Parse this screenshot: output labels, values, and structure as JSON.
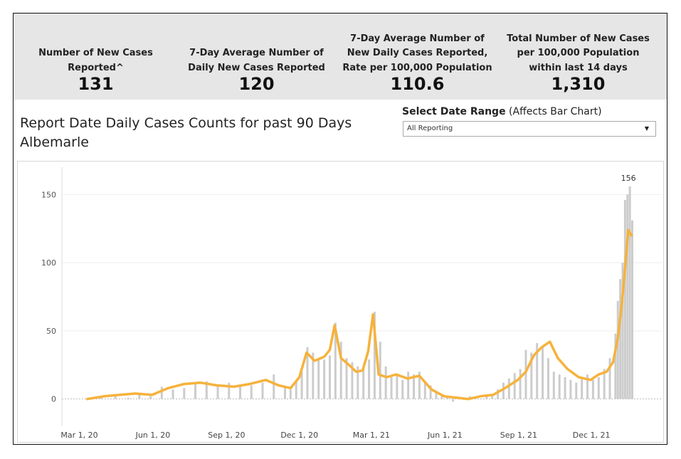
{
  "kpis": [
    {
      "label_lines": [
        "Number of New Cases",
        "Reported^"
      ],
      "value": "131"
    },
    {
      "label_lines": [
        "7-Day Average Number of",
        "Daily New Cases Reported"
      ],
      "value": "120"
    },
    {
      "label_lines": [
        "7-Day Average Number of",
        "New Daily Cases Reported,",
        "Rate per 100,000 Population"
      ],
      "value": "110.6"
    },
    {
      "label_lines": [
        "Total Number of New Cases",
        "per 100,000 Population",
        "within last 14 days"
      ],
      "value": "1,310"
    }
  ],
  "chart_title_lines": [
    "Report Date Daily Cases Counts for past 90 Days",
    "Albemarle"
  ],
  "filter": {
    "label_bold": "Select Date Range",
    "label_rest": " (Affects Bar Chart)",
    "selected": "All Reporting"
  },
  "colors": {
    "bars": "#cccccc",
    "moving_average": "#f6b23c",
    "kpi_band": "#e6e6e6"
  },
  "chart_data": {
    "type": "bar",
    "title": "Report Date Daily Cases Counts for past 90 Days",
    "subtitle": "Albemarle",
    "x_ticks": [
      "Mar 1, 20",
      "Jun 1, 20",
      "Sep 1, 20",
      "Dec 1, 20",
      "Mar 1, 21",
      "Jun 1, 21",
      "Sep 1, 21",
      "Dec 1, 21"
    ],
    "y_ticks": [
      0,
      50,
      100,
      150
    ],
    "ylim": [
      -20,
      170
    ],
    "max_label": "156",
    "series": [
      {
        "type": "bar",
        "x": [
          "2020-03-11",
          "2020-03-28",
          "2020-04-15",
          "2020-05-01",
          "2020-05-15",
          "2020-05-29",
          "2020-06-12",
          "2020-06-26",
          "2020-07-10",
          "2020-07-24",
          "2020-08-07",
          "2020-08-21",
          "2020-09-04",
          "2020-09-18",
          "2020-10-02",
          "2020-10-16",
          "2020-10-30",
          "2020-11-13",
          "2020-11-20",
          "2020-11-27",
          "2020-12-04",
          "2020-12-11",
          "2020-12-18",
          "2020-12-25",
          "2021-01-01",
          "2021-01-08",
          "2021-01-15",
          "2021-01-22",
          "2021-01-29",
          "2021-02-05",
          "2021-02-12",
          "2021-02-19",
          "2021-02-26",
          "2021-03-05",
          "2021-03-12",
          "2021-03-19",
          "2021-03-26",
          "2021-04-02",
          "2021-04-09",
          "2021-04-16",
          "2021-04-23",
          "2021-04-30",
          "2021-05-07",
          "2021-05-14",
          "2021-05-21",
          "2021-05-28",
          "2021-06-04",
          "2021-06-11",
          "2021-06-18",
          "2021-06-25",
          "2021-07-02",
          "2021-07-09",
          "2021-07-16",
          "2021-07-23",
          "2021-07-30",
          "2021-08-06",
          "2021-08-13",
          "2021-08-20",
          "2021-08-27",
          "2021-09-03",
          "2021-09-10",
          "2021-09-17",
          "2021-09-24",
          "2021-10-01",
          "2021-10-08",
          "2021-10-15",
          "2021-10-22",
          "2021-10-29",
          "2021-11-05",
          "2021-11-12",
          "2021-11-19",
          "2021-11-26",
          "2021-12-03",
          "2021-12-10",
          "2021-12-17",
          "2021-12-24",
          "2021-12-31",
          "2022-01-03",
          "2022-01-06",
          "2022-01-09",
          "2022-01-12",
          "2022-01-15",
          "2022-01-18",
          "2022-01-21"
        ],
        "values": [
          0,
          2,
          3,
          1,
          4,
          2,
          9,
          7,
          8,
          11,
          13,
          10,
          12,
          9,
          10,
          12,
          18,
          8,
          7,
          13,
          20,
          38,
          34,
          30,
          29,
          32,
          56,
          42,
          30,
          27,
          24,
          22,
          29,
          64,
          42,
          24,
          16,
          18,
          14,
          20,
          18,
          20,
          13,
          10,
          5,
          2,
          1,
          -2,
          0,
          1,
          2,
          1,
          0,
          2,
          3,
          7,
          12,
          15,
          19,
          22,
          36,
          34,
          41,
          38,
          30,
          20,
          18,
          16,
          14,
          12,
          16,
          18,
          14,
          16,
          22,
          30,
          48,
          72,
          88,
          100,
          146,
          150,
          156,
          131
        ]
      },
      {
        "type": "line",
        "name": "7-Day Average",
        "x": [
          "2020-03-11",
          "2020-04-01",
          "2020-04-20",
          "2020-05-10",
          "2020-05-31",
          "2020-06-20",
          "2020-07-10",
          "2020-07-30",
          "2020-08-20",
          "2020-09-10",
          "2020-09-30",
          "2020-10-20",
          "2020-11-05",
          "2020-11-20",
          "2020-12-01",
          "2020-12-10",
          "2020-12-20",
          "2021-01-01",
          "2021-01-08",
          "2021-01-14",
          "2021-01-22",
          "2021-02-01",
          "2021-02-10",
          "2021-02-18",
          "2021-02-25",
          "2021-03-03",
          "2021-03-10",
          "2021-03-20",
          "2021-04-01",
          "2021-04-15",
          "2021-04-30",
          "2021-05-15",
          "2021-05-31",
          "2021-06-15",
          "2021-06-30",
          "2021-07-15",
          "2021-07-31",
          "2021-08-15",
          "2021-08-31",
          "2021-09-10",
          "2021-09-20",
          "2021-09-30",
          "2021-10-10",
          "2021-10-20",
          "2021-11-01",
          "2021-11-15",
          "2021-11-30",
          "2021-12-10",
          "2021-12-20",
          "2021-12-28",
          "2022-01-03",
          "2022-01-08",
          "2022-01-12",
          "2022-01-16",
          "2022-01-20"
        ],
        "values": [
          0,
          2,
          3,
          4,
          3,
          8,
          11,
          12,
          10,
          9,
          11,
          14,
          10,
          8,
          16,
          34,
          28,
          31,
          36,
          54,
          30,
          25,
          20,
          21,
          35,
          62,
          18,
          16,
          18,
          15,
          17,
          7,
          2,
          1,
          0,
          2,
          3,
          8,
          14,
          20,
          32,
          38,
          42,
          30,
          22,
          16,
          14,
          18,
          20,
          27,
          45,
          70,
          96,
          124,
          120
        ]
      }
    ]
  }
}
